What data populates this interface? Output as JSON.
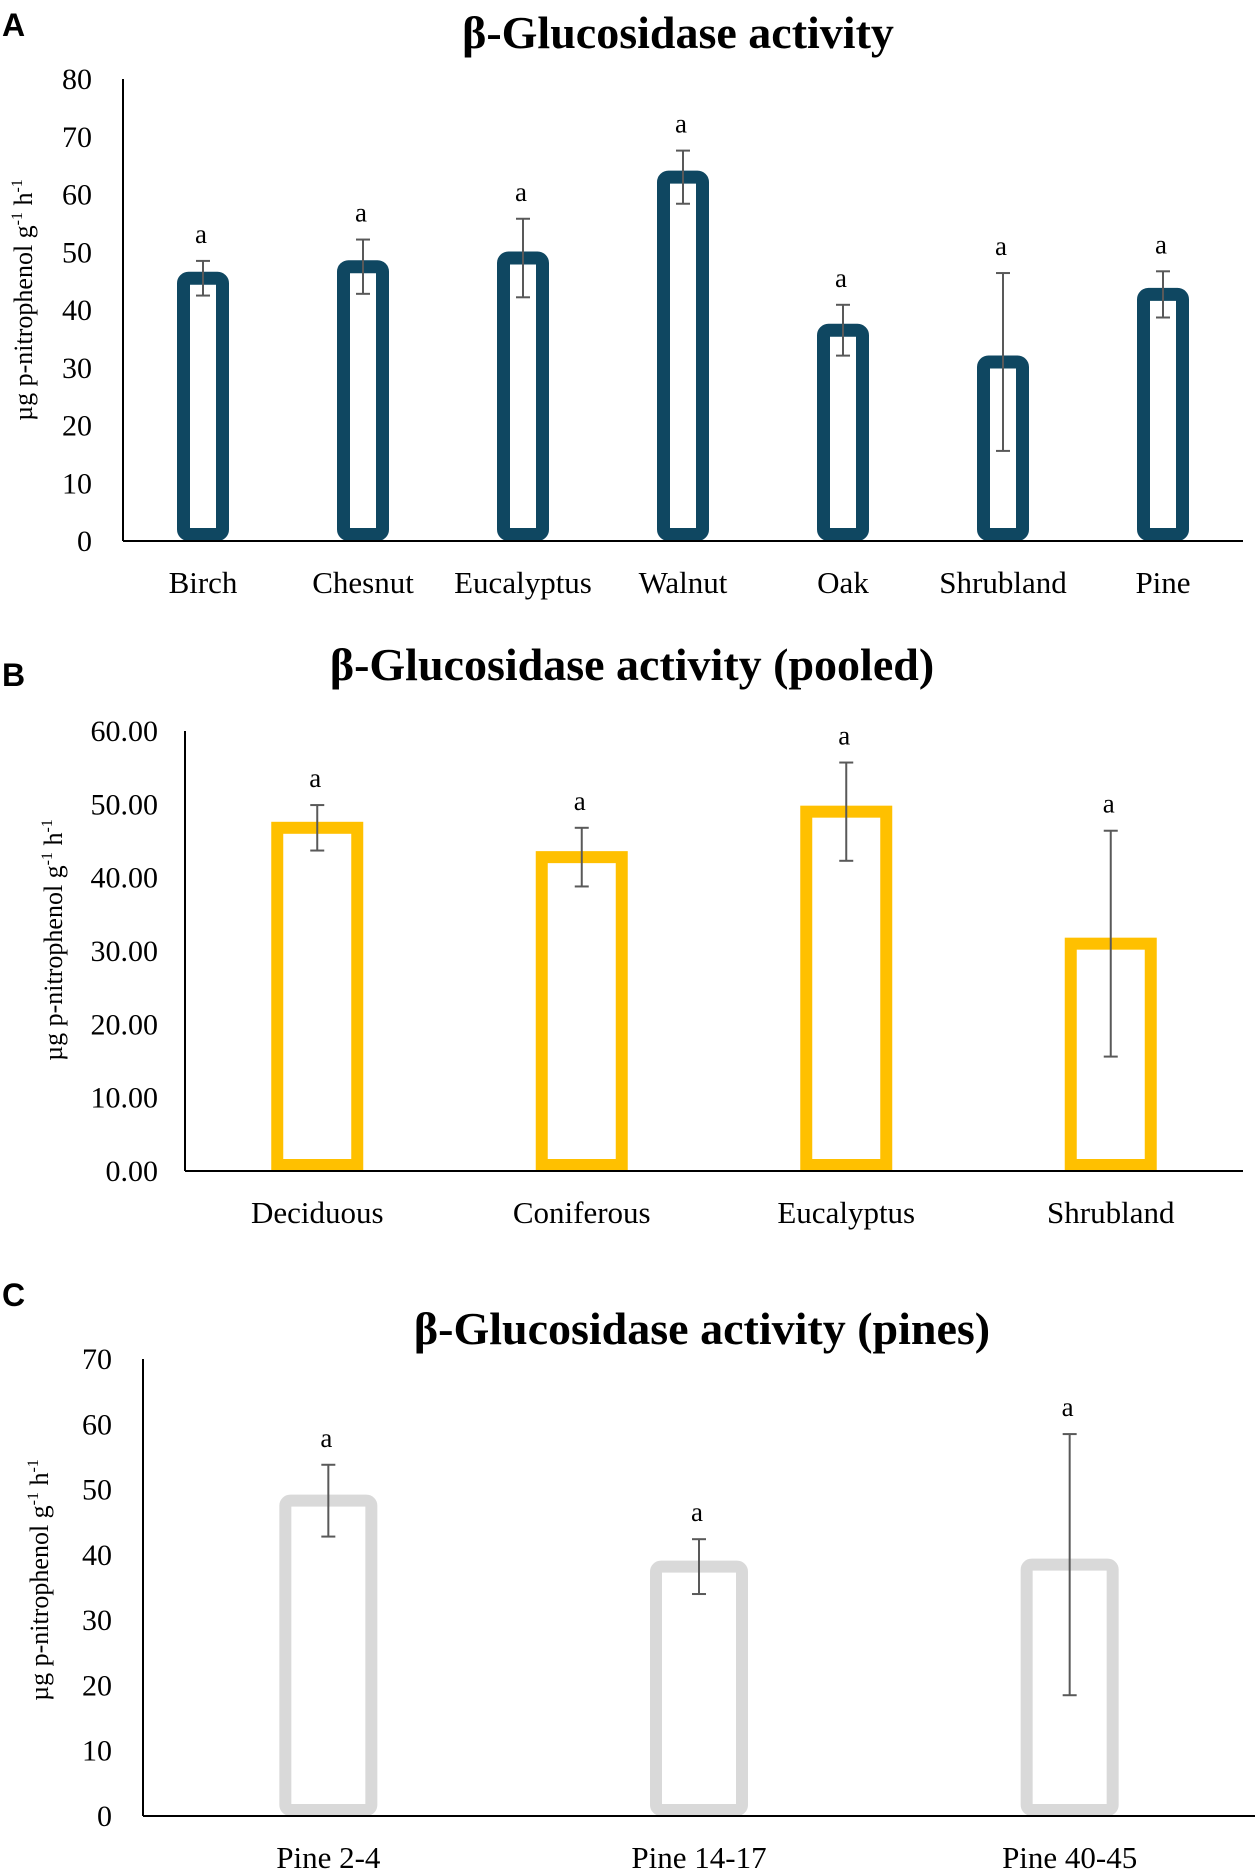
{
  "figure": {
    "panels": [
      "A",
      "B",
      "C"
    ]
  },
  "chart_data": [
    {
      "panel": "A",
      "type": "bar",
      "title": "β-Glucosidase activity",
      "xlabel": "",
      "ylabel": "µg p-nitrophenol g-1 h-1",
      "ylim": [
        0,
        80
      ],
      "yticks": [
        "0",
        "10",
        "20",
        "30",
        "40",
        "50",
        "60",
        "70",
        "80"
      ],
      "ytick_values": [
        0,
        10,
        20,
        30,
        40,
        50,
        60,
        70,
        80
      ],
      "categories": [
        "Birch",
        "Chesnut",
        "Eucalyptus",
        "Walnut",
        "Oak",
        "Shrubland",
        "Pine"
      ],
      "values": [
        45.5,
        47.5,
        49,
        63,
        36.5,
        31,
        42.7
      ],
      "errors": [
        3,
        4.7,
        6.8,
        4.6,
        4.4,
        15.4,
        4
      ],
      "significance_letters": [
        "a",
        "a",
        "a",
        "a",
        "a",
        "a",
        "a"
      ],
      "bar_style": "outlined",
      "color": "#0f4761",
      "grid": false,
      "legend": "none"
    },
    {
      "panel": "B",
      "type": "bar",
      "title": "β-Glucosidase activity (pooled)",
      "xlabel": "",
      "ylabel": "µg p-nitrophenol g-1 h-1",
      "ylim": [
        0,
        60
      ],
      "yticks": [
        "0.00",
        "10.00",
        "20.00",
        "30.00",
        "40.00",
        "50.00",
        "60.00"
      ],
      "ytick_values": [
        0,
        10,
        20,
        30,
        40,
        50,
        60
      ],
      "categories": [
        "Deciduous",
        "Coniferous",
        "Eucalyptus",
        "Shrubland"
      ],
      "values": [
        46.8,
        42.8,
        49,
        31
      ],
      "errors": [
        3.1,
        4,
        6.7,
        15.4
      ],
      "significance_letters": [
        "a",
        "a",
        "a",
        "a"
      ],
      "bar_style": "outlined",
      "color": "#ffc000",
      "grid": false,
      "legend": "none"
    },
    {
      "panel": "C",
      "type": "bar",
      "title": "β-Glucosidase activity (pines)",
      "xlabel": "",
      "ylabel": "µg p-nitrophenol g-1 h-1",
      "ylim": [
        0,
        70
      ],
      "yticks": [
        "0",
        "10",
        "20",
        "30",
        "40",
        "50",
        "60",
        "70"
      ],
      "ytick_values": [
        0,
        10,
        20,
        30,
        40,
        50,
        60,
        70
      ],
      "categories": [
        "Pine 2-4",
        "Pine 14-17",
        "Pine 40-45"
      ],
      "values": [
        48.3,
        38.2,
        38.5
      ],
      "errors": [
        5.5,
        4.2,
        20
      ],
      "significance_letters": [
        "a",
        "a",
        "a"
      ],
      "bar_style": "outlined",
      "color": "#d9d9d9",
      "grid": false,
      "legend": "none"
    }
  ],
  "colors": {
    "error_bar": "#595959",
    "axis": "#000000"
  }
}
